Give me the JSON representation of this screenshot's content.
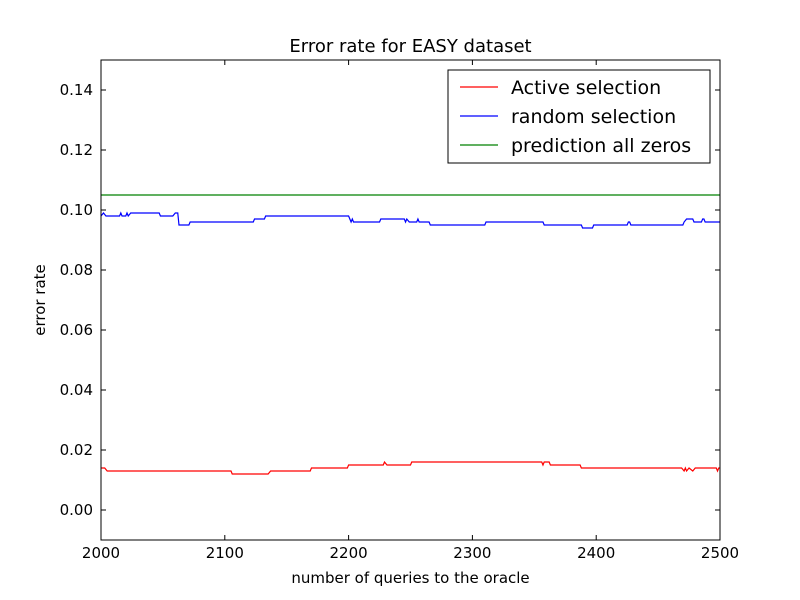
{
  "chart_data": {
    "type": "line",
    "title": "Error rate for EASY dataset",
    "xlabel": "number of queries to the oracle",
    "ylabel": "error rate",
    "xlim": [
      2000,
      2500
    ],
    "ylim": [
      -0.01,
      0.15
    ],
    "xticks": [
      2000,
      2100,
      2200,
      2300,
      2400,
      2500
    ],
    "yticks": [
      0.0,
      0.02,
      0.04,
      0.06,
      0.08,
      0.1,
      0.12,
      0.14
    ],
    "xtick_labels": [
      "2000",
      "2100",
      "2200",
      "2300",
      "2400",
      "2500"
    ],
    "ytick_labels": [
      "0.00",
      "0.02",
      "0.04",
      "0.06",
      "0.08",
      "0.10",
      "0.12",
      "0.14"
    ],
    "grid": false,
    "legend_position": "upper right",
    "series": [
      {
        "name": "Active selection",
        "color": "#ff0000",
        "points": [
          [
            2000,
            0.014
          ],
          [
            2003,
            0.014
          ],
          [
            2005,
            0.013
          ],
          [
            2105,
            0.013
          ],
          [
            2106,
            0.012
          ],
          [
            2135,
            0.012
          ],
          [
            2137,
            0.013
          ],
          [
            2169,
            0.013
          ],
          [
            2170,
            0.014
          ],
          [
            2199,
            0.014
          ],
          [
            2200,
            0.015
          ],
          [
            2228,
            0.015
          ],
          [
            2229,
            0.016
          ],
          [
            2231,
            0.015
          ],
          [
            2250,
            0.015
          ],
          [
            2251,
            0.016
          ],
          [
            2356,
            0.016
          ],
          [
            2357,
            0.015
          ],
          [
            2358,
            0.016
          ],
          [
            2362,
            0.016
          ],
          [
            2363,
            0.015
          ],
          [
            2387,
            0.015
          ],
          [
            2388,
            0.014
          ],
          [
            2469,
            0.014
          ],
          [
            2471,
            0.013
          ],
          [
            2472,
            0.014
          ],
          [
            2473,
            0.013
          ],
          [
            2475,
            0.014
          ],
          [
            2478,
            0.013
          ],
          [
            2480,
            0.014
          ],
          [
            2497,
            0.014
          ],
          [
            2498,
            0.013
          ],
          [
            2499,
            0.014
          ],
          [
            2500,
            0.014
          ]
        ]
      },
      {
        "name": "random selection",
        "color": "#0000ff",
        "points": [
          [
            2000,
            0.098
          ],
          [
            2002,
            0.099
          ],
          [
            2004,
            0.098
          ],
          [
            2015,
            0.098
          ],
          [
            2016,
            0.099
          ],
          [
            2017,
            0.098
          ],
          [
            2020,
            0.098
          ],
          [
            2021,
            0.099
          ],
          [
            2022,
            0.098
          ],
          [
            2024,
            0.099
          ],
          [
            2047,
            0.099
          ],
          [
            2048,
            0.098
          ],
          [
            2058,
            0.098
          ],
          [
            2060,
            0.099
          ],
          [
            2062,
            0.099
          ],
          [
            2063,
            0.095
          ],
          [
            2071,
            0.095
          ],
          [
            2072,
            0.096
          ],
          [
            2123,
            0.096
          ],
          [
            2124,
            0.097
          ],
          [
            2132,
            0.097
          ],
          [
            2133,
            0.098
          ],
          [
            2200,
            0.098
          ],
          [
            2201,
            0.097
          ],
          [
            2202,
            0.096
          ],
          [
            2203,
            0.097
          ],
          [
            2204,
            0.096
          ],
          [
            2225,
            0.096
          ],
          [
            2226,
            0.097
          ],
          [
            2245,
            0.097
          ],
          [
            2246,
            0.096
          ],
          [
            2247,
            0.097
          ],
          [
            2249,
            0.096
          ],
          [
            2255,
            0.096
          ],
          [
            2256,
            0.097
          ],
          [
            2257,
            0.096
          ],
          [
            2265,
            0.096
          ],
          [
            2266,
            0.095
          ],
          [
            2310,
            0.095
          ],
          [
            2311,
            0.096
          ],
          [
            2357,
            0.096
          ],
          [
            2358,
            0.095
          ],
          [
            2388,
            0.095
          ],
          [
            2389,
            0.094
          ],
          [
            2397,
            0.094
          ],
          [
            2398,
            0.095
          ],
          [
            2425,
            0.095
          ],
          [
            2426,
            0.096
          ],
          [
            2427,
            0.096
          ],
          [
            2428,
            0.095
          ],
          [
            2470,
            0.095
          ],
          [
            2471,
            0.096
          ],
          [
            2473,
            0.097
          ],
          [
            2478,
            0.097
          ],
          [
            2479,
            0.096
          ],
          [
            2485,
            0.096
          ],
          [
            2486,
            0.097
          ],
          [
            2487,
            0.097
          ],
          [
            2488,
            0.096
          ],
          [
            2500,
            0.096
          ]
        ]
      },
      {
        "name": "prediction all zeros",
        "color": "#008000",
        "points": [
          [
            2000,
            0.105
          ],
          [
            2500,
            0.105
          ]
        ]
      }
    ]
  }
}
